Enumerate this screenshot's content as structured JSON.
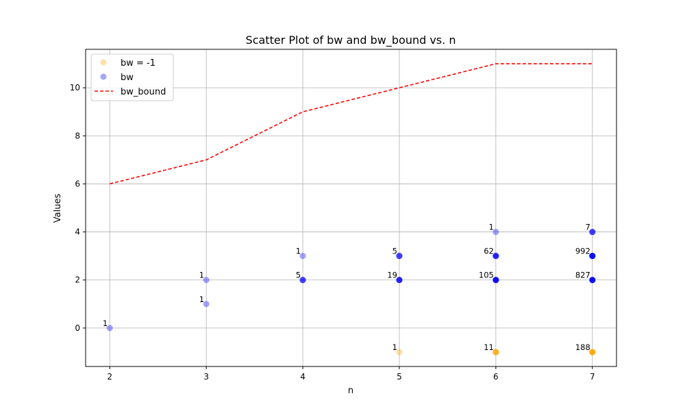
{
  "chart_data": {
    "type": "scatter",
    "title": "Scatter Plot of bw and bw_bound vs. n",
    "xlabel": "n",
    "ylabel": "Values",
    "xlim": [
      1.75,
      7.25
    ],
    "ylim": [
      -1.6,
      11.6
    ],
    "xticks": [
      2,
      3,
      4,
      5,
      6,
      7
    ],
    "yticks": [
      0,
      2,
      4,
      6,
      8,
      10
    ],
    "grid": true,
    "legend_position": "top-left",
    "legend": [
      {
        "label": "bw = -1",
        "marker": "circle",
        "color": "#ffa500"
      },
      {
        "label": "bw",
        "marker": "circle",
        "color": "#0000ff"
      },
      {
        "label": "bw_bound",
        "marker": "dashed-line",
        "color": "#ff0000"
      }
    ],
    "series": [
      {
        "name": "bw = -1",
        "color": "#ffa500",
        "points": [
          {
            "x": 5,
            "y": -1,
            "count": "1"
          },
          {
            "x": 6,
            "y": -1,
            "count": "11"
          },
          {
            "x": 7,
            "y": -1,
            "count": "188"
          }
        ]
      },
      {
        "name": "bw",
        "color": "#0000ff",
        "points": [
          {
            "x": 2,
            "y": 0,
            "count": "1"
          },
          {
            "x": 3,
            "y": 1,
            "count": "1"
          },
          {
            "x": 3,
            "y": 2,
            "count": "1"
          },
          {
            "x": 4,
            "y": 2,
            "count": "5"
          },
          {
            "x": 4,
            "y": 3,
            "count": "1"
          },
          {
            "x": 5,
            "y": 2,
            "count": "19"
          },
          {
            "x": 5,
            "y": 3,
            "count": "5"
          },
          {
            "x": 6,
            "y": 2,
            "count": "105"
          },
          {
            "x": 6,
            "y": 3,
            "count": "62"
          },
          {
            "x": 6,
            "y": 4,
            "count": "1"
          },
          {
            "x": 7,
            "y": 2,
            "count": "827"
          },
          {
            "x": 7,
            "y": 3,
            "count": "992"
          },
          {
            "x": 7,
            "y": 4,
            "count": "7"
          }
        ]
      },
      {
        "name": "bw_bound",
        "color": "#ff0000",
        "line_style": "dashed",
        "x": [
          2,
          3,
          4,
          5,
          6,
          7
        ],
        "y": [
          6,
          7,
          9,
          10,
          11,
          11
        ]
      }
    ]
  }
}
